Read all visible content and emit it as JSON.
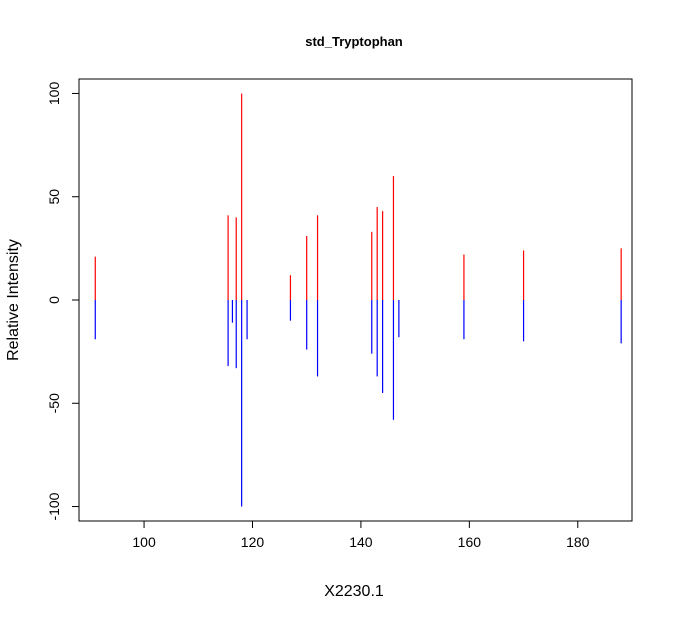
{
  "chart_data": {
    "type": "mirror-stick",
    "title": "std_Tryptophan",
    "xlabel": "X2230.1",
    "ylabel": "Relative Intensity",
    "xlim": [
      88,
      190
    ],
    "ylim": [
      -107,
      107
    ],
    "x_ticks": [
      100,
      120,
      140,
      160,
      180
    ],
    "x_tick_labels": [
      "100",
      "120",
      "140",
      "160",
      "180"
    ],
    "y_ticks": [
      -100,
      -50,
      0,
      50,
      100
    ],
    "y_tick_labels": [
      "-100",
      "-50",
      "0",
      "50",
      "100"
    ],
    "grid": false,
    "series": [
      {
        "color": "#ff0000",
        "points": [
          {
            "x": 91,
            "y": 21
          },
          {
            "x": 115.5,
            "y": 41
          },
          {
            "x": 117,
            "y": 40
          },
          {
            "x": 118,
            "y": 100
          },
          {
            "x": 127,
            "y": 12
          },
          {
            "x": 130,
            "y": 31
          },
          {
            "x": 132,
            "y": 41
          },
          {
            "x": 142,
            "y": 33
          },
          {
            "x": 143,
            "y": 45
          },
          {
            "x": 144,
            "y": 43
          },
          {
            "x": 146,
            "y": 60
          },
          {
            "x": 159,
            "y": 22
          },
          {
            "x": 170,
            "y": 24
          },
          {
            "x": 188,
            "y": 25
          }
        ]
      },
      {
        "color": "#0000ff",
        "points": [
          {
            "x": 91,
            "y": -19
          },
          {
            "x": 115.5,
            "y": -32
          },
          {
            "x": 116.3,
            "y": -11
          },
          {
            "x": 117,
            "y": -33
          },
          {
            "x": 118,
            "y": -100
          },
          {
            "x": 119,
            "y": -19
          },
          {
            "x": 127,
            "y": -10
          },
          {
            "x": 130,
            "y": -24
          },
          {
            "x": 132,
            "y": -37
          },
          {
            "x": 142,
            "y": -26
          },
          {
            "x": 143,
            "y": -37
          },
          {
            "x": 144,
            "y": -45
          },
          {
            "x": 146,
            "y": -58
          },
          {
            "x": 147,
            "y": -18
          },
          {
            "x": 159,
            "y": -19
          },
          {
            "x": 170,
            "y": -20
          },
          {
            "x": 188,
            "y": -21
          }
        ]
      }
    ]
  }
}
